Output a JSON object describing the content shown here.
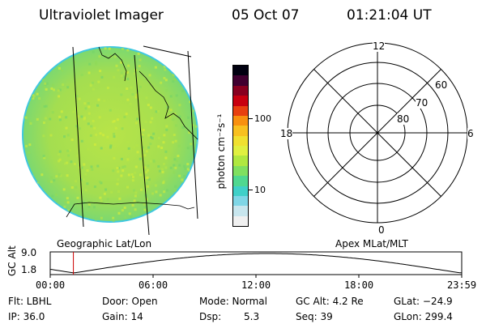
{
  "header": {
    "title": "Ultraviolet Imager",
    "date": "05 Oct 07",
    "time": "01:21:04 UT"
  },
  "geo_panel": {
    "label": "Geographic Lat/Lon"
  },
  "apex_panel": {
    "label": "Apex MLat/MLT",
    "mlt_labels": {
      "top": "12",
      "right": "6",
      "bottom": "0",
      "left": "18"
    },
    "lat_labels": [
      "60",
      "70",
      "80"
    ]
  },
  "colorbar": {
    "unit_label": "photon cm⁻²s⁻¹",
    "ticks": [
      "100",
      "10"
    ],
    "colors": [
      "#f0f0f0",
      "#c8e6ee",
      "#7fd6e6",
      "#40d0c8",
      "#50d890",
      "#80e060",
      "#b0e840",
      "#e0f040",
      "#f0e030",
      "#f8c020",
      "#f89010",
      "#e84010",
      "#c80010",
      "#880020",
      "#400030",
      "#000010"
    ]
  },
  "altitude_plot": {
    "axis_label": "GC Alt",
    "y_ticks": [
      "9.0",
      "1.8"
    ],
    "x_ticks": [
      "00:00",
      "06:00",
      "12:00",
      "18:00",
      "23:59"
    ],
    "marker_time": "01:21",
    "marker_color": "#cc0000"
  },
  "footer": {
    "flt": "Flt: LBHL",
    "door": "Door: Open",
    "mode": "Mode: Normal",
    "gc_alt": "GC Alt: 4.2 Re",
    "glat": "GLat: −24.9",
    "ip": "IP: 36.0",
    "gain": "Gain: 14",
    "dsp_label": "Dsp:",
    "dsp_value": "5.3",
    "seq": "Seq: 39",
    "glon": "GLon: 299.4"
  },
  "image": {
    "dominant_color": "#a8e050",
    "accent_color": "#60d860"
  }
}
